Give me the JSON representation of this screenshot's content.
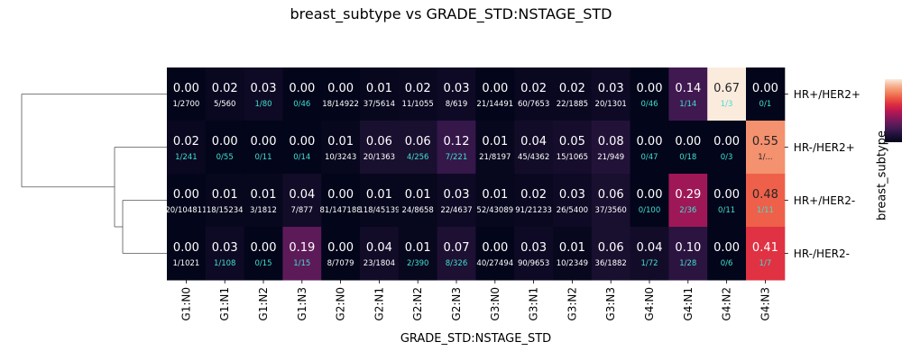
{
  "chart_data": {
    "type": "heatmap",
    "title": "breast_subtype vs GRADE_STD:NSTAGE_STD",
    "xlabel": "GRADE_STD:NSTAGE_STD",
    "ylabel": "breast_subtype",
    "columns": [
      "G1:N0",
      "G1:N1",
      "G1:N2",
      "G1:N3",
      "G2:N0",
      "G2:N1",
      "G2:N2",
      "G2:N3",
      "G3:N0",
      "G3:N1",
      "G3:N2",
      "G3:N3",
      "G4:N0",
      "G4:N1",
      "G4:N2",
      "G4:N3"
    ],
    "rows": [
      "HR+/HER2+",
      "HR-/HER2+",
      "HR+/HER2-",
      "HR-/HER2-"
    ],
    "values": [
      [
        "0.00",
        "0.02",
        "0.03",
        "0.00",
        "0.00",
        "0.01",
        "0.02",
        "0.03",
        "0.00",
        "0.02",
        "0.02",
        "0.03",
        "0.00",
        "0.14",
        "0.67",
        "0.00"
      ],
      [
        "0.02",
        "0.00",
        "0.00",
        "0.00",
        "0.01",
        "0.06",
        "0.06",
        "0.12",
        "0.01",
        "0.04",
        "0.05",
        "0.08",
        "0.00",
        "0.00",
        "0.00",
        "0.55"
      ],
      [
        "0.00",
        "0.01",
        "0.01",
        "0.04",
        "0.00",
        "0.01",
        "0.01",
        "0.03",
        "0.01",
        "0.02",
        "0.03",
        "0.06",
        "0.00",
        "0.29",
        "0.00",
        "0.48"
      ],
      [
        "0.00",
        "0.03",
        "0.00",
        "0.19",
        "0.00",
        "0.04",
        "0.01",
        "0.07",
        "0.00",
        "0.03",
        "0.01",
        "0.06",
        "0.04",
        "0.10",
        "0.00",
        "0.41"
      ]
    ],
    "counts": [
      [
        "1/2700",
        "5/560",
        "1/80",
        "0/46",
        "18/14922",
        "37/5614",
        "11/1055",
        "8/619",
        "21/14491",
        "60/7653",
        "22/1885",
        "20/1301",
        "0/46",
        "1/14",
        "1/3",
        "0/1"
      ],
      [
        "1/241",
        "0/55",
        "0/11",
        "0/14",
        "10/3243",
        "20/1363",
        "4/256",
        "7/221",
        "21/8197",
        "45/4362",
        "15/1065",
        "21/949",
        "0/47",
        "0/18",
        "0/3",
        "1/..."
      ],
      [
        "20/104811",
        "18/15234",
        "3/1812",
        "7/877",
        "81/147188",
        "118/45139",
        "24/8658",
        "22/4637",
        "52/43089",
        "91/21233",
        "26/5400",
        "37/3560",
        "0/100",
        "2/36",
        "0/11",
        "1/11"
      ],
      [
        "1/1021",
        "1/108",
        "0/15",
        "1/15",
        "8/7079",
        "23/1804",
        "2/390",
        "8/326",
        "40/27494",
        "90/9653",
        "10/2349",
        "36/1882",
        "1/72",
        "1/28",
        "0/6",
        "1/7"
      ]
    ],
    "low_count_color": "#40e0d0",
    "colormap": "rocket",
    "dendrogram_side": "left",
    "colorbar_side": "right"
  }
}
